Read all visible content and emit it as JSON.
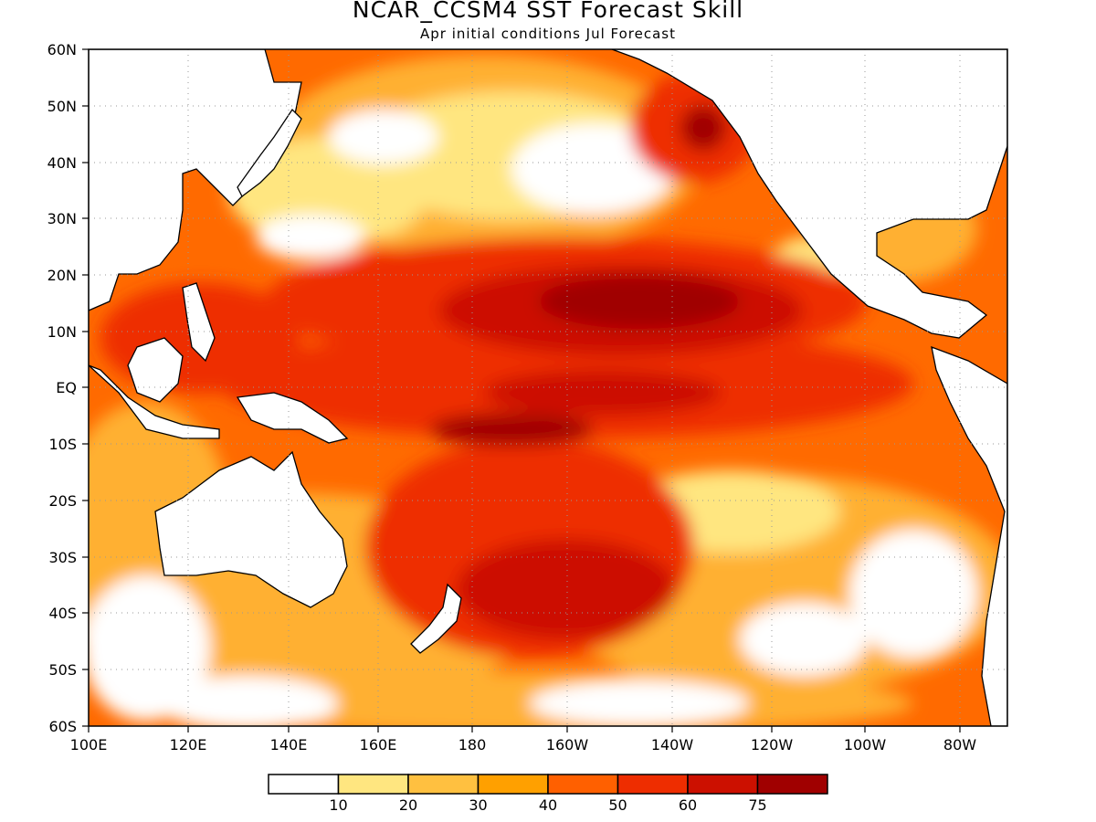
{
  "title": "NCAR_CCSM4 SST Forecast Skill",
  "subtitle": "Apr initial conditions  Jul Forecast",
  "lat_labels": [
    "60N",
    "50N",
    "40N",
    "30N",
    "20N",
    "10N",
    "EQ",
    "10S",
    "20S",
    "30S",
    "40S",
    "50S",
    "60S"
  ],
  "lon_labels": [
    "100E",
    "120E",
    "140E",
    "160E",
    "180",
    "160W",
    "140W",
    "120W",
    "100W",
    "80W"
  ],
  "legend": {
    "colors": [
      "#ffffff",
      "#ffe680",
      "#ffc040",
      "#ffa000",
      "#ff6000",
      "#ee2d00",
      "#cc1000",
      "#a00000"
    ],
    "labels": [
      "10",
      "20",
      "30",
      "40",
      "50",
      "60",
      "75"
    ]
  },
  "colors": {
    "land": "#ffffff",
    "coast": "#000000",
    "grid": "#999999"
  }
}
